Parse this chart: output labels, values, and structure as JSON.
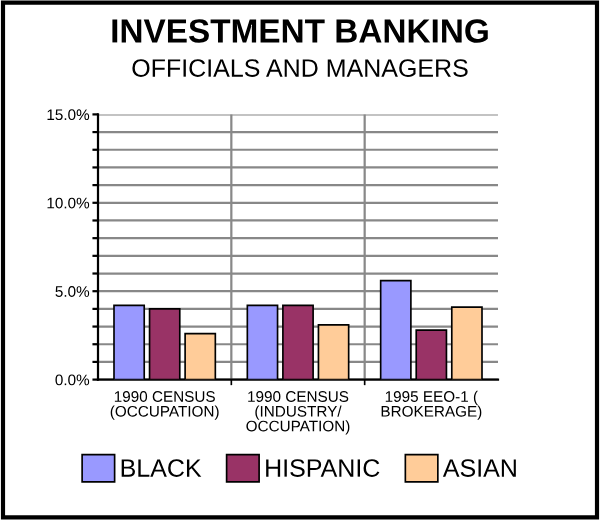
{
  "chart_data": {
    "type": "bar",
    "title": "INVESTMENT BANKING",
    "subtitle": "OFFICIALS AND MANAGERS",
    "categories": [
      "1990 CENSUS (OCCUPATION)",
      "1990 CENSUS (INDUSTRY/OCCUPATION)",
      "1995 EEO-1 ( BROKERAGE)"
    ],
    "series": [
      {
        "name": "BLACK",
        "color": "#9999ff",
        "values": [
          4.2,
          4.2,
          5.6
        ]
      },
      {
        "name": "HISPANIC",
        "color": "#993366",
        "values": [
          4.0,
          4.2,
          2.8
        ]
      },
      {
        "name": "ASIAN",
        "color": "#ffcc99",
        "values": [
          2.6,
          3.1,
          4.1
        ]
      }
    ],
    "ylim": [
      0,
      15
    ],
    "yticks": [
      {
        "value": 0,
        "label": "0.0%"
      },
      {
        "value": 1,
        "label": null
      },
      {
        "value": 2,
        "label": null
      },
      {
        "value": 3,
        "label": null
      },
      {
        "value": 4,
        "label": null
      },
      {
        "value": 5,
        "label": "5.0%"
      },
      {
        "value": 6,
        "label": null
      },
      {
        "value": 7,
        "label": null
      },
      {
        "value": 8,
        "label": null
      },
      {
        "value": 9,
        "label": null
      },
      {
        "value": 10,
        "label": "10.0%"
      },
      {
        "value": 11,
        "label": null
      },
      {
        "value": 12,
        "label": null
      },
      {
        "value": 13,
        "label": null
      },
      {
        "value": 14,
        "label": null
      },
      {
        "value": 15,
        "label": "15.0%"
      }
    ],
    "grid": true,
    "legend": "bottom"
  }
}
